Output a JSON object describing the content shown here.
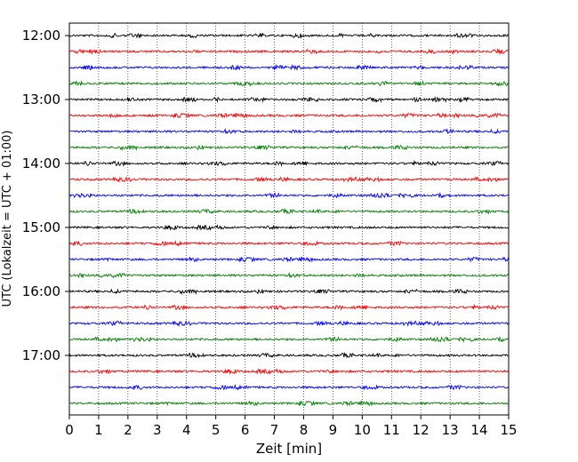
{
  "chart_data": {
    "type": "line",
    "title": "",
    "xlabel": "Zeit  [min]",
    "ylabel": "UTC (Lokalzeit = UTC + 01:00)",
    "xlim": [
      0,
      15
    ],
    "x_ticks": [
      "0",
      "1",
      "2",
      "3",
      "4",
      "5",
      "6",
      "7",
      "8",
      "9",
      "10",
      "11",
      "12",
      "13",
      "14",
      "15"
    ],
    "y_ticks": [
      "12:00",
      "13:00",
      "14:00",
      "15:00",
      "16:00",
      "17:00"
    ],
    "traces_per_hour": 4,
    "trace_count": 24,
    "first_trace": "12:00",
    "trace_colors": [
      "#000000",
      "#ff0000",
      "#0000ff",
      "#008000"
    ],
    "grid": {
      "vertical": true,
      "style": "dotted"
    },
    "legend": "none"
  }
}
